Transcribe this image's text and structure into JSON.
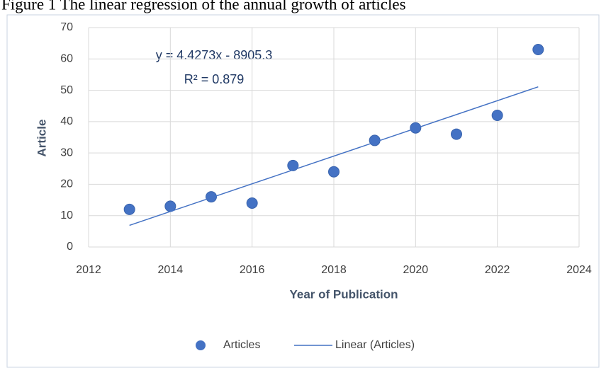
{
  "chart_data": {
    "type": "scatter",
    "title": "Figure 1 The linear regression of the annual growth of articles",
    "x_label": "Year of Publication",
    "y_label": "Article",
    "annotations": [
      "y = 4.4273x - 8905.3",
      "R² = 0.879"
    ],
    "series": [
      {
        "name": "Articles",
        "color": "#4472c4",
        "x": [
          2013,
          2014,
          2015,
          2016,
          2017,
          2018,
          2019,
          2020,
          2021,
          2022,
          2023
        ],
        "values": [
          12,
          13,
          16,
          14,
          26,
          24,
          34,
          38,
          36,
          42,
          63
        ]
      },
      {
        "name": "Linear (Articles)",
        "color": "#4472c4",
        "line": true,
        "x": [
          2013,
          2023
        ],
        "values": [
          6.9,
          51.1
        ]
      }
    ],
    "xlim": [
      2012,
      2024
    ],
    "xticks": [
      2012,
      2014,
      2016,
      2018,
      2020,
      2022,
      2024
    ],
    "ylim": [
      0,
      70
    ],
    "yticks": [
      0,
      10,
      20,
      30,
      40,
      50,
      60,
      70
    ],
    "grid": true,
    "legend": "bottom"
  }
}
